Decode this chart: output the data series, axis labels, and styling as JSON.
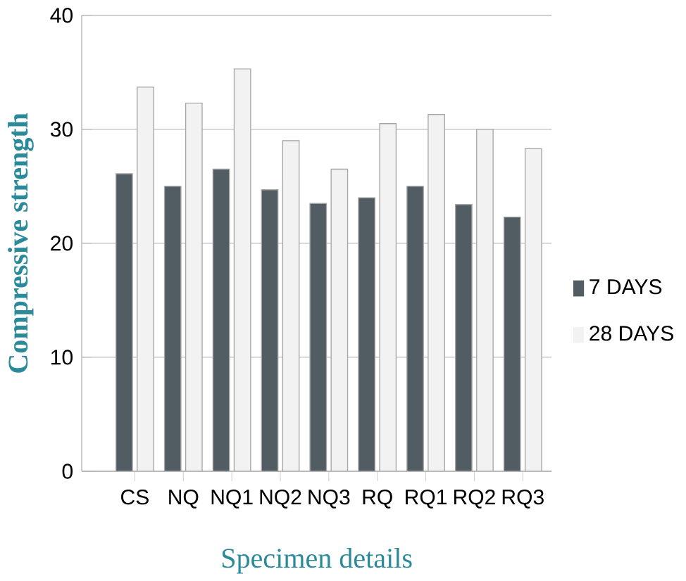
{
  "chart_data": {
    "type": "bar",
    "xlabel": "Specimen details",
    "ylabel": "Compressive strength",
    "categories": [
      "CS",
      "NQ",
      "NQ1",
      "NQ2",
      "NQ3",
      "RQ",
      "RQ1",
      "RQ2",
      "RQ3"
    ],
    "series": [
      {
        "name": "7 DAYS",
        "color": "#525c63",
        "values": [
          26.1,
          25,
          26.5,
          24.7,
          23.5,
          24,
          25,
          23.4,
          22.3
        ]
      },
      {
        "name": "28 DAYS",
        "color": "#f2f2f2",
        "values": [
          33.7,
          32.3,
          35.3,
          29,
          26.5,
          30.5,
          31.3,
          30,
          28.3
        ]
      }
    ],
    "ylim": [
      0,
      40
    ],
    "yticks": [
      0,
      10,
      20,
      30,
      40
    ],
    "grid": "y",
    "legend": "right"
  }
}
